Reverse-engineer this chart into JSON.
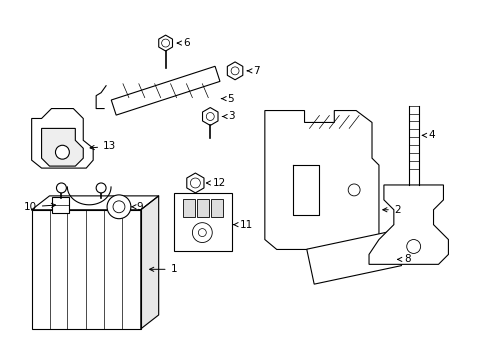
{
  "bg_color": "#ffffff",
  "line_color": "#000000",
  "lw": 0.8,
  "fontsize": 7.5
}
